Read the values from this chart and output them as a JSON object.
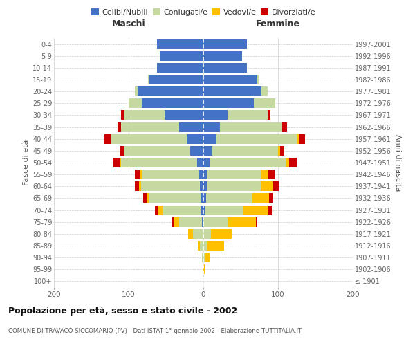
{
  "age_groups": [
    "100+",
    "95-99",
    "90-94",
    "85-89",
    "80-84",
    "75-79",
    "70-74",
    "65-69",
    "60-64",
    "55-59",
    "50-54",
    "45-49",
    "40-44",
    "35-39",
    "30-34",
    "25-29",
    "20-24",
    "15-19",
    "10-14",
    "5-9",
    "0-4"
  ],
  "birth_years": [
    "≤ 1901",
    "1902-1906",
    "1907-1911",
    "1912-1916",
    "1917-1921",
    "1922-1926",
    "1927-1931",
    "1932-1936",
    "1937-1941",
    "1942-1946",
    "1947-1951",
    "1952-1956",
    "1957-1961",
    "1962-1966",
    "1967-1971",
    "1972-1976",
    "1977-1981",
    "1982-1986",
    "1987-1991",
    "1992-1996",
    "1997-2001"
  ],
  "males": {
    "celibi": [
      0,
      0,
      0,
      0,
      0,
      2,
      3,
      4,
      5,
      6,
      8,
      18,
      22,
      32,
      52,
      82,
      88,
      72,
      62,
      58,
      62
    ],
    "coniugati": [
      0,
      0,
      2,
      5,
      14,
      30,
      52,
      68,
      78,
      76,
      102,
      88,
      102,
      78,
      54,
      18,
      4,
      2,
      0,
      0,
      0
    ],
    "vedovi": [
      0,
      0,
      0,
      2,
      6,
      8,
      6,
      4,
      3,
      2,
      2,
      0,
      0,
      0,
      0,
      0,
      0,
      0,
      0,
      0,
      0
    ],
    "divorziati": [
      0,
      0,
      0,
      0,
      0,
      2,
      4,
      5,
      6,
      8,
      8,
      5,
      8,
      5,
      4,
      0,
      0,
      0,
      0,
      0,
      0
    ]
  },
  "females": {
    "nubili": [
      0,
      0,
      0,
      0,
      0,
      0,
      2,
      4,
      5,
      5,
      8,
      12,
      18,
      22,
      32,
      68,
      78,
      72,
      58,
      52,
      58
    ],
    "coniugate": [
      0,
      0,
      2,
      6,
      10,
      32,
      52,
      62,
      72,
      72,
      102,
      88,
      108,
      84,
      54,
      28,
      8,
      2,
      0,
      0,
      0
    ],
    "vedove": [
      0,
      2,
      6,
      22,
      28,
      38,
      32,
      22,
      16,
      10,
      5,
      3,
      2,
      0,
      0,
      0,
      0,
      0,
      0,
      0,
      0
    ],
    "divorziate": [
      0,
      0,
      0,
      0,
      0,
      2,
      6,
      5,
      8,
      8,
      10,
      5,
      8,
      6,
      4,
      0,
      0,
      0,
      0,
      0,
      0
    ]
  },
  "color_celibi": "#4472c4",
  "color_coniugati": "#c5d9a0",
  "color_vedovi": "#ffc000",
  "color_divorziati": "#cc0000",
  "title_main": "Popolazione per età, sesso e stato civile - 2002",
  "title_sub": "COMUNE DI TRAVACÒ SICCOMARIO (PV) - Dati ISTAT 1° gennaio 2002 - Elaborazione TUTTITALIA.IT",
  "ylabel_left": "Fasce di età",
  "ylabel_right": "Anni di nascita",
  "xlabel_maschi": "Maschi",
  "xlabel_femmine": "Femmine",
  "xlim": 200,
  "bg_color": "#ffffff",
  "grid_color": "#cccccc"
}
